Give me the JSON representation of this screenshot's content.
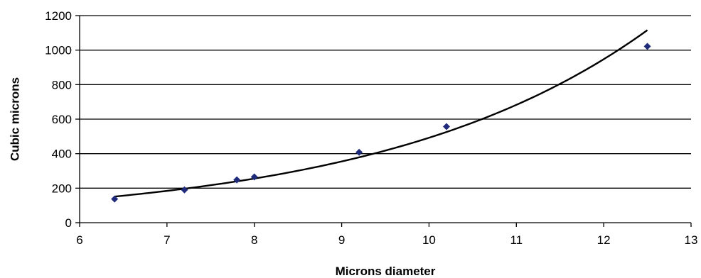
{
  "chart_data": {
    "type": "scatter",
    "title": "",
    "xlabel": "Microns diameter",
    "ylabel": "Cubic microns",
    "xlim": [
      6,
      13
    ],
    "ylim": [
      0,
      1200
    ],
    "x_ticks": [
      "6",
      "7",
      "8",
      "9",
      "10",
      "11",
      "12",
      "13"
    ],
    "y_ticks": [
      "0",
      "200",
      "400",
      "600",
      "800",
      "1000",
      "1200"
    ],
    "grid": "horizontal",
    "legend": "none",
    "series": [
      {
        "marker": "diamond",
        "color": "#1f2a7a",
        "points": [
          {
            "x": 6.4,
            "y": 137
          },
          {
            "x": 7.2,
            "y": 190
          },
          {
            "x": 7.8,
            "y": 248
          },
          {
            "x": 8.0,
            "y": 265
          },
          {
            "x": 9.2,
            "y": 408
          },
          {
            "x": 10.2,
            "y": 557
          },
          {
            "x": 12.5,
            "y": 1022
          }
        ]
      }
    ],
    "trendline": {
      "type": "exponential",
      "color": "#000000",
      "x_range": [
        6.4,
        12.5
      ],
      "samples": [
        {
          "x": 6.4,
          "y": 155
        },
        {
          "x": 7.2,
          "y": 190
        },
        {
          "x": 8.0,
          "y": 258
        },
        {
          "x": 9.2,
          "y": 380
        },
        {
          "x": 10.2,
          "y": 520
        },
        {
          "x": 11.0,
          "y": 690
        },
        {
          "x": 12.0,
          "y": 950
        },
        {
          "x": 12.5,
          "y": 1112
        }
      ]
    }
  }
}
